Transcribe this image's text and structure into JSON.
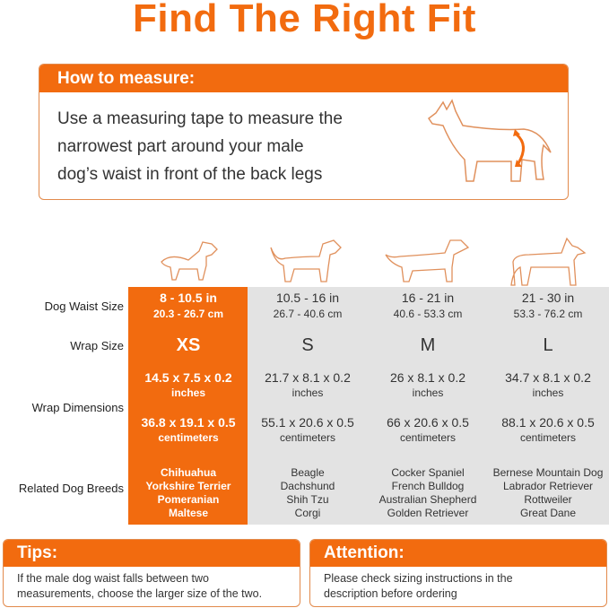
{
  "title": "Find The Right Fit",
  "measure": {
    "heading": "How to measure:",
    "lines": [
      "Use a measuring tape to measure the",
      "narrowest part around your male",
      "dog’s waist in front of the back legs"
    ]
  },
  "accent": "#f26b0f",
  "table": {
    "labels": {
      "waist": "Dog Waist Size",
      "wrap": "Wrap Size",
      "dims": "Wrap Dimensions",
      "breeds": "Related Dog Breeds"
    },
    "columns": [
      {
        "waist_in": "8 - 10.5 in",
        "waist_cm": "20.3 - 26.7 cm",
        "size": "XS",
        "dim_in": "14.5 x 7.5 x 0.2",
        "unit_in": "inches",
        "dim_cm": "36.8 x 19.1 x 0.5",
        "unit_cm": "centimeters",
        "breeds": [
          "Chihuahua",
          "Yorkshire Terrier",
          "Pomeranian",
          "Maltese"
        ]
      },
      {
        "waist_in": "10.5 - 16 in",
        "waist_cm": "26.7 - 40.6 cm",
        "size": "S",
        "dim_in": "21.7 x 8.1 x 0.2",
        "unit_in": "inches",
        "dim_cm": "55.1 x 20.6 x 0.5",
        "unit_cm": "centimeters",
        "breeds": [
          "Beagle",
          "Dachshund",
          "Shih Tzu",
          "Corgi"
        ]
      },
      {
        "waist_in": "16 - 21 in",
        "waist_cm": "40.6 - 53.3 cm",
        "size": "M",
        "dim_in": "26 x 8.1 x 0.2",
        "unit_in": "inches",
        "dim_cm": "66 x 20.6 x 0.5",
        "unit_cm": "centimeters",
        "breeds": [
          "Cocker Spaniel",
          "French Bulldog",
          "Australian Shepherd",
          "Golden Retriever"
        ]
      },
      {
        "waist_in": "21 - 30 in",
        "waist_cm": "53.3 - 76.2 cm",
        "size": "L",
        "dim_in": "34.7 x 8.1 x 0.2",
        "unit_in": "inches",
        "dim_cm": "88.1 x 20.6 x 0.5",
        "unit_cm": "centimeters",
        "breeds": [
          "Bernese Mountain Dog",
          "Labrador Retriever",
          "Rottweiler",
          "Great Dane"
        ]
      }
    ]
  },
  "tips": {
    "heading": "Tips:",
    "text": "If the male dog waist falls between two measurements, choose the larger size of the two."
  },
  "attention": {
    "heading": "Attention:",
    "text": "Please check sizing instructions in the description before ordering"
  }
}
